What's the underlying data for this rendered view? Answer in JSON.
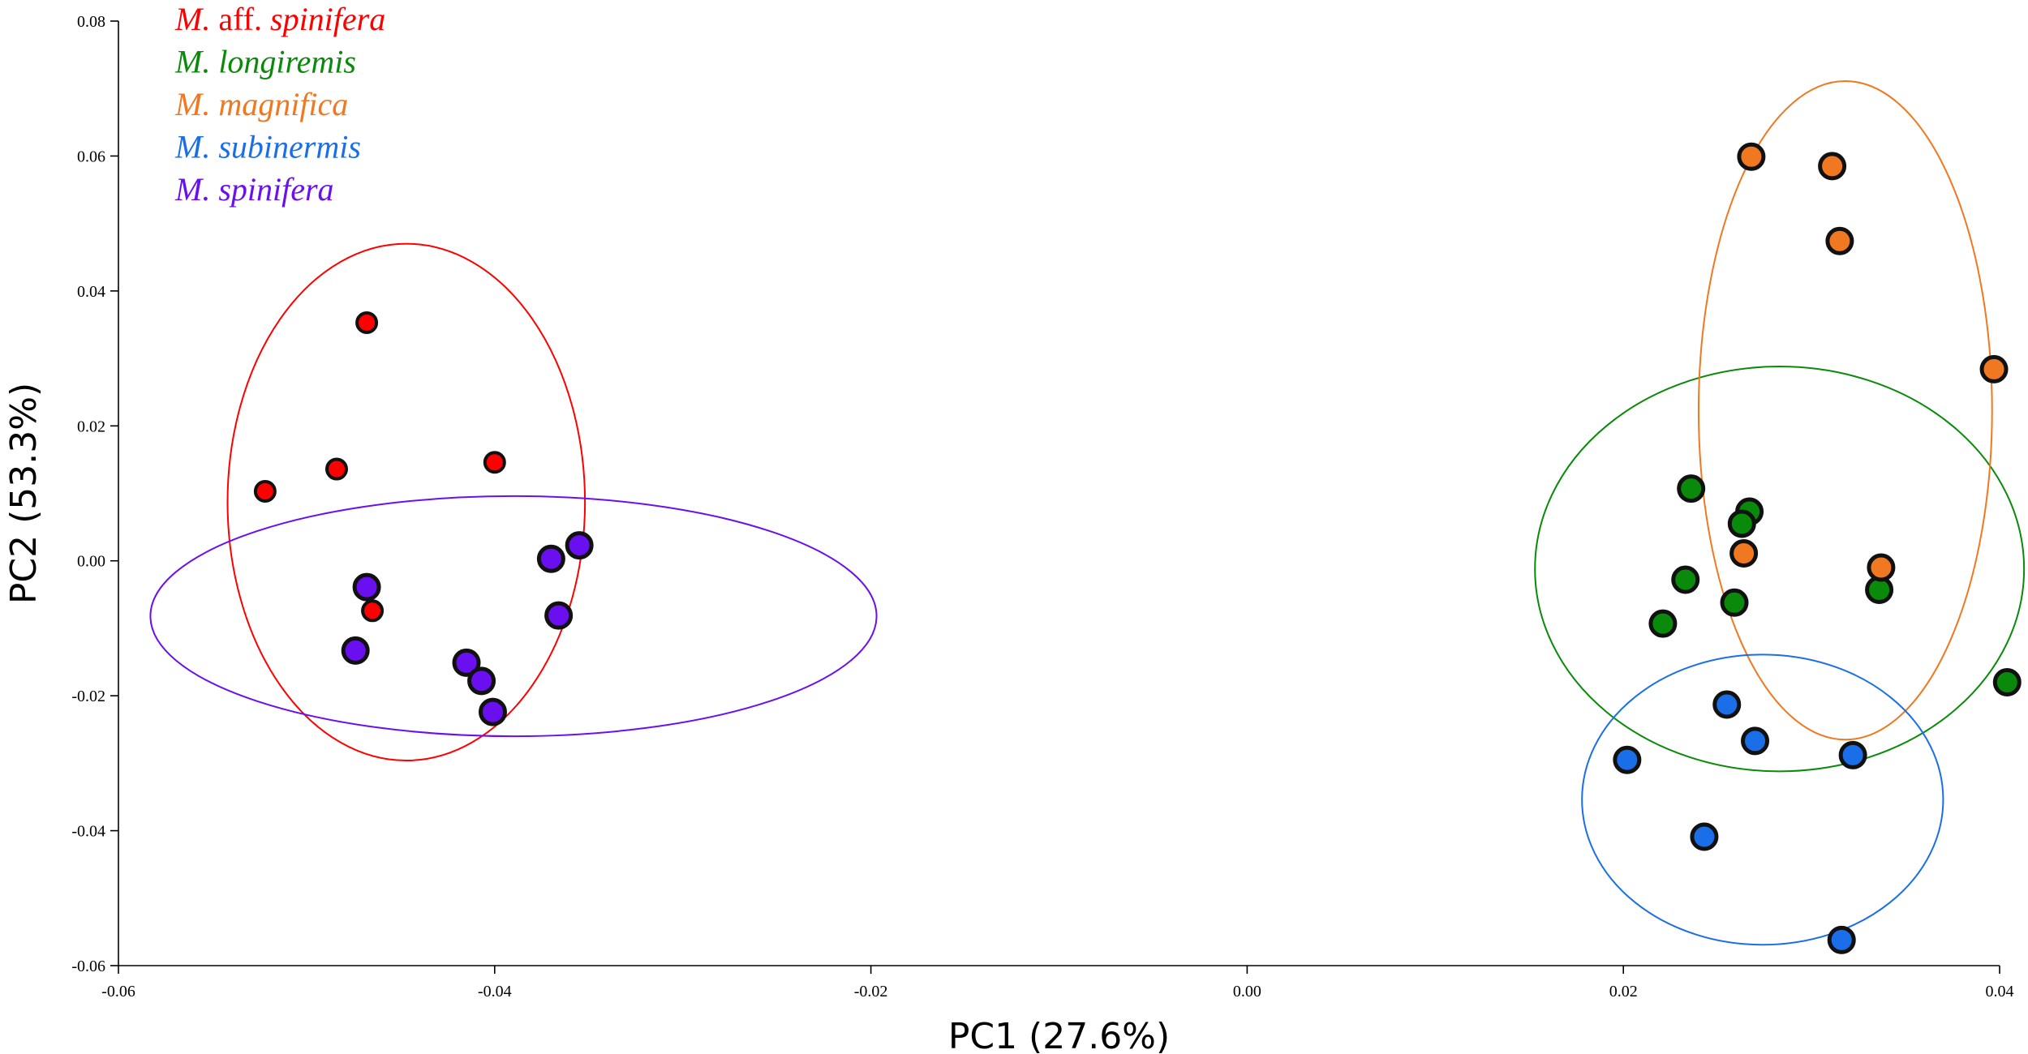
{
  "chart_data": {
    "type": "scatter",
    "xlabel": "PC1 (27.6%)",
    "ylabel": "PC2 (53.3%)",
    "xlim": [
      -0.06,
      0.04
    ],
    "ylim": [
      -0.06,
      0.08
    ],
    "xticks": [
      -0.06,
      -0.04,
      -0.02,
      0.0,
      0.02,
      0.04
    ],
    "xtick_labels": [
      "-0.06",
      "-0.04",
      "-0.02",
      "0.00",
      "0.02",
      "0.04"
    ],
    "yticks": [
      -0.06,
      -0.04,
      -0.02,
      0.0,
      0.02,
      0.04,
      0.06,
      0.08
    ],
    "ytick_labels": [
      "-0.06",
      "-0.04",
      "-0.02",
      "0.00",
      "0.02",
      "0.04",
      "0.06",
      "0.08"
    ],
    "grid": false,
    "legend_position": "top-left",
    "series": [
      {
        "name": "M. aff. spinifera",
        "legend": [
          {
            "text": "M.",
            "italic": true
          },
          {
            "text": " aff. ",
            "italic": false
          },
          {
            "text": "spinifera",
            "italic": true
          }
        ],
        "color": "#ff0000",
        "marker": "small",
        "points": [
          [
            -0.0468,
            0.0353
          ],
          [
            -0.0522,
            0.0103
          ],
          [
            -0.0484,
            0.0136
          ],
          [
            -0.04,
            0.0146
          ],
          [
            -0.0465,
            -0.0074
          ]
        ],
        "ellipse": {
          "cx": -0.0447,
          "cy": 0.0087,
          "rx": 0.0095,
          "ry": 0.0383
        }
      },
      {
        "name": "M. longiremis",
        "legend": [
          {
            "text": "M. longiremis",
            "italic": true
          }
        ],
        "color": "#0a8a0a",
        "marker": "large",
        "points": [
          [
            0.0236,
            0.0107
          ],
          [
            0.0267,
            0.0073
          ],
          [
            0.0263,
            0.0055
          ],
          [
            0.0233,
            -0.0028
          ],
          [
            0.0259,
            -0.0062
          ],
          [
            0.0221,
            -0.0093
          ],
          [
            0.0336,
            -0.0043
          ],
          [
            0.0404,
            -0.018
          ]
        ],
        "ellipse": {
          "cx": 0.0283,
          "cy": -0.0012,
          "rx": 0.013,
          "ry": 0.03
        }
      },
      {
        "name": "M. magnifica",
        "legend": [
          {
            "text": "M. magnifica",
            "italic": true
          }
        ],
        "color": "#f07820",
        "marker": "large",
        "points": [
          [
            0.0268,
            0.0599
          ],
          [
            0.0311,
            0.0585
          ],
          [
            0.0315,
            0.0474
          ],
          [
            0.0397,
            0.0284
          ],
          [
            0.0264,
            0.0011
          ],
          [
            0.0337,
            -0.001
          ]
        ],
        "ellipse": {
          "cx": 0.0318,
          "cy": 0.0223,
          "rx": 0.0078,
          "ry": 0.0488
        }
      },
      {
        "name": "M. subinermis",
        "legend": [
          {
            "text": "M. subinermis",
            "italic": true
          }
        ],
        "color": "#1a6fe8",
        "marker": "large",
        "points": [
          [
            0.0255,
            -0.0213
          ],
          [
            0.027,
            -0.0267
          ],
          [
            0.0322,
            -0.0288
          ],
          [
            0.0202,
            -0.0295
          ],
          [
            0.0243,
            -0.0409
          ],
          [
            0.0316,
            -0.0562
          ]
        ],
        "ellipse": {
          "cx": 0.0274,
          "cy": -0.0354,
          "rx": 0.0096,
          "ry": 0.0215
        }
      },
      {
        "name": "M. spinifera",
        "legend": [
          {
            "text": "M. spinifera",
            "italic": true
          }
        ],
        "color": "#6a10f0",
        "marker": "large",
        "points": [
          [
            -0.0468,
            -0.0039
          ],
          [
            -0.0474,
            -0.0133
          ],
          [
            -0.0415,
            -0.0151
          ],
          [
            -0.0407,
            -0.0178
          ],
          [
            -0.0401,
            -0.0224
          ],
          [
            -0.037,
            0.0003
          ],
          [
            -0.0355,
            0.0023
          ],
          [
            -0.0366,
            -0.0081
          ]
        ],
        "ellipse": {
          "cx": -0.039,
          "cy": -0.0082,
          "rx": 0.0193,
          "ry": 0.0178
        }
      }
    ]
  }
}
